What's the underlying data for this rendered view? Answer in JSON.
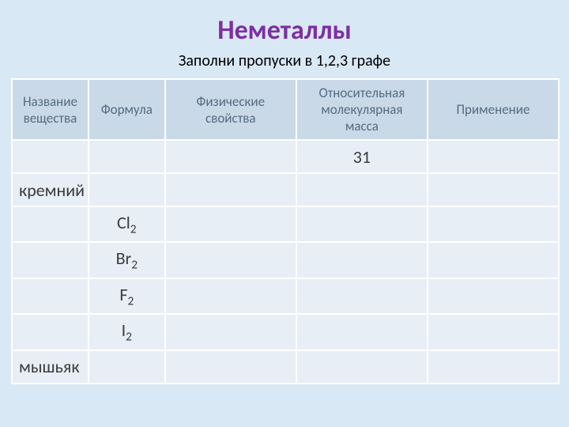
{
  "title": {
    "text": "Неметаллы",
    "color": "#7d2fa3",
    "fontsize": 34
  },
  "subtitle": {
    "text": "Заполни пропуски в 1,2,3 графе",
    "color": "#000000",
    "fontsize": 20
  },
  "table": {
    "header_bg": "#c9d9e8",
    "header_text_color": "#556b80",
    "header_fontsize": 17,
    "body_bg": "#e7eef6",
    "body_text_color": "#3b3b3b",
    "body_fontsize": 22,
    "border_color": "#ffffff",
    "column_widths_pct": [
      14,
      14,
      24,
      24,
      24
    ],
    "row_height_header": 64,
    "row_height_body": 42,
    "columns": [
      "Название вещества",
      "Формула",
      "Физические свойства",
      "Относительная молекулярная масса",
      "Применение"
    ],
    "rows": [
      {
        "name": "",
        "formula_base": "",
        "formula_sub": "",
        "prop": "",
        "mass": "31",
        "use": ""
      },
      {
        "name": "кремний",
        "formula_base": "",
        "formula_sub": "",
        "prop": "",
        "mass": "",
        "use": ""
      },
      {
        "name": "",
        "formula_base": "Cl",
        "formula_sub": "2",
        "prop": "",
        "mass": "",
        "use": ""
      },
      {
        "name": "",
        "formula_base": "Br",
        "formula_sub": "2",
        "prop": "",
        "mass": "",
        "use": ""
      },
      {
        "name": "",
        "formula_base": "F",
        "formula_sub": "2",
        "prop": "",
        "mass": "",
        "use": ""
      },
      {
        "name": "",
        "formula_base": "I",
        "formula_sub": "2",
        "prop": "",
        "mass": "",
        "use": ""
      },
      {
        "name": "мышьяк",
        "formula_base": "",
        "formula_sub": "",
        "prop": "",
        "mass": "",
        "use": ""
      }
    ]
  }
}
